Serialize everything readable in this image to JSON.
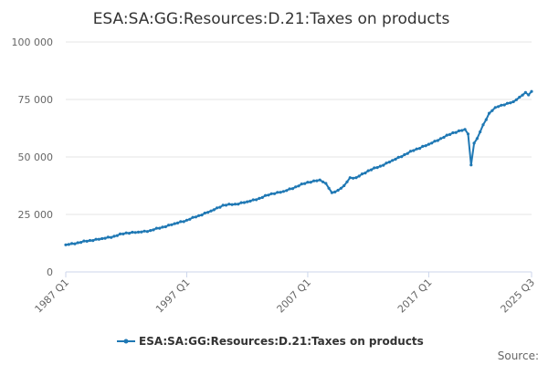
{
  "chart_data": {
    "type": "line",
    "title": "ESA:SA:GG:Resources:D.21:Taxes on products",
    "xlabel": "",
    "ylabel": "",
    "ylim": [
      0,
      100000
    ],
    "yticks": [
      0,
      25000,
      50000,
      75000,
      100000
    ],
    "ytick_labels": [
      "0",
      "25 000",
      "50 000",
      "75 000",
      "100 000"
    ],
    "xrange": [
      1987.0,
      2025.5
    ],
    "xticks": [
      1987.0,
      1997.0,
      2007.0,
      2017.0,
      2025.5
    ],
    "xtick_labels": [
      "1987 Q1",
      "1997 Q1",
      "2007 Q1",
      "2017 Q1",
      "2025 Q3"
    ],
    "grid": true,
    "legend_position": "bottom-center",
    "series": [
      {
        "name": "ESA:SA:GG:Resources:D.21:Taxes on products",
        "color": "#1f78b4",
        "points": [
          [
            1987.0,
            11800
          ],
          [
            1988.0,
            12700
          ],
          [
            1989.0,
            13700
          ],
          [
            1990.0,
            14500
          ],
          [
            1991.0,
            15500
          ],
          [
            1992.0,
            17000
          ],
          [
            1993.0,
            17300
          ],
          [
            1994.0,
            18000
          ],
          [
            1995.0,
            19500
          ],
          [
            1996.0,
            21000
          ],
          [
            1997.0,
            22500
          ],
          [
            1998.0,
            24500
          ],
          [
            1999.0,
            26500
          ],
          [
            2000.0,
            29000
          ],
          [
            2001.0,
            29500
          ],
          [
            2002.0,
            30500
          ],
          [
            2003.0,
            32000
          ],
          [
            2004.0,
            34000
          ],
          [
            2005.0,
            35000
          ],
          [
            2006.0,
            37000
          ],
          [
            2007.0,
            39000
          ],
          [
            2008.0,
            40000
          ],
          [
            2008.5,
            38500
          ],
          [
            2009.0,
            34500
          ],
          [
            2009.5,
            35500
          ],
          [
            2010.0,
            37500
          ],
          [
            2010.5,
            41000
          ],
          [
            2011.0,
            41000
          ],
          [
            2012.0,
            44000
          ],
          [
            2013.0,
            46000
          ],
          [
            2014.0,
            48500
          ],
          [
            2015.0,
            51000
          ],
          [
            2016.0,
            53500
          ],
          [
            2017.0,
            55500
          ],
          [
            2018.0,
            58000
          ],
          [
            2019.0,
            60500
          ],
          [
            2020.0,
            62000
          ],
          [
            2020.25,
            60000
          ],
          [
            2020.5,
            46500
          ],
          [
            2020.75,
            56000
          ],
          [
            2021.0,
            58000
          ],
          [
            2021.5,
            64000
          ],
          [
            2022.0,
            69000
          ],
          [
            2022.5,
            71500
          ],
          [
            2023.0,
            72500
          ],
          [
            2024.0,
            74000
          ],
          [
            2024.5,
            76000
          ],
          [
            2025.0,
            78000
          ],
          [
            2025.25,
            77000
          ],
          [
            2025.5,
            78500
          ]
        ]
      }
    ],
    "source_label": "Source:"
  }
}
